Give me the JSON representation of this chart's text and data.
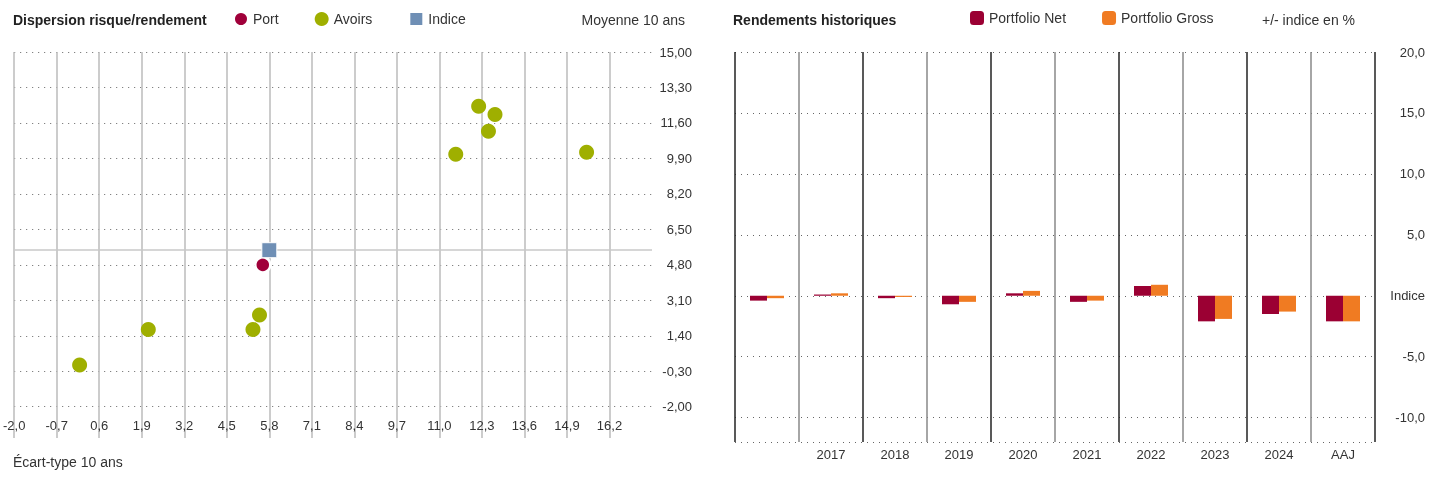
{
  "chart_data": [
    {
      "type": "scatter",
      "title": "Dispersion risque/rendement",
      "xlabel": "Écart-type 10 ans",
      "ylabel": "Moyenne 10 ans",
      "legend": "top",
      "grid": true,
      "xlim": [
        -2,
        17.5
      ],
      "xticks": [
        {
          "value": -2,
          "label": "-2,0"
        },
        {
          "value": -0.7,
          "label": "-0,7"
        },
        {
          "value": 0.6,
          "label": "0,6"
        },
        {
          "value": 1.9,
          "label": "1,9"
        },
        {
          "value": 3.2,
          "label": "3,2"
        },
        {
          "value": 4.5,
          "label": "4,5"
        },
        {
          "value": 5.8,
          "label": "5,8"
        },
        {
          "value": 7.1,
          "label": "7,1"
        },
        {
          "value": 8.4,
          "label": "8,4"
        },
        {
          "value": 9.7,
          "label": "9,7"
        },
        {
          "value": 11,
          "label": "11,0"
        },
        {
          "value": 12.3,
          "label": "12,3"
        },
        {
          "value": 13.6,
          "label": "13,6"
        },
        {
          "value": 14.9,
          "label": "14,9"
        },
        {
          "value": 16.2,
          "label": "16,2"
        }
      ],
      "ylim": [
        -3.5,
        15
      ],
      "yticks": [
        {
          "value": 15,
          "label": "15,00"
        },
        {
          "value": 13.3,
          "label": "13,30"
        },
        {
          "value": 11.6,
          "label": "11,60"
        },
        {
          "value": 9.9,
          "label": "9,90"
        },
        {
          "value": 8.2,
          "label": "8,20"
        },
        {
          "value": 6.5,
          "label": "6,50"
        },
        {
          "value": 4.8,
          "label": "4,80"
        },
        {
          "value": 3.1,
          "label": "3,10"
        },
        {
          "value": 1.4,
          "label": "1,40"
        },
        {
          "value": -0.3,
          "label": "-0,30"
        },
        {
          "value": -2,
          "label": "-2,00"
        }
      ],
      "ref_lines": [
        {
          "axis": "y",
          "value": 5.5,
          "color": "#c8c8c8"
        }
      ],
      "series": [
        {
          "name": "Port",
          "color": "#a0003a",
          "marker": "circle",
          "x": [
            5.6
          ],
          "values": [
            4.8
          ]
        },
        {
          "name": "Avoirs",
          "color": "#9faf00",
          "marker": "circle",
          "x": [
            0.0,
            2.1,
            5.3,
            5.5,
            11.5,
            12.2,
            12.5,
            12.7,
            15.5
          ],
          "values": [
            0.0,
            1.7,
            1.7,
            2.4,
            10.1,
            12.4,
            11.2,
            12.0,
            10.2
          ]
        },
        {
          "name": "Indice",
          "color": "#6f8fb5",
          "marker": "square",
          "x": [
            5.8
          ],
          "values": [
            5.5
          ]
        }
      ]
    },
    {
      "type": "bar",
      "title": "Rendements historiques",
      "ylabel": "+/- indice en %",
      "legend": "top",
      "grid": true,
      "categories": [
        null,
        "2017",
        "2018",
        "2019",
        "2020",
        "2021",
        "2022",
        "2023",
        "2024",
        "AAJ"
      ],
      "ylim": [
        -12,
        20
      ],
      "yticks": [
        {
          "value": 20,
          "label": "20,0"
        },
        {
          "value": 15,
          "label": "15,0"
        },
        {
          "value": 10,
          "label": "10,0"
        },
        {
          "value": 5,
          "label": "5,0"
        },
        {
          "value": 0,
          "label": "Indice"
        },
        {
          "value": -5,
          "label": "-5,0"
        },
        {
          "value": -10,
          "label": "-10,0"
        }
      ],
      "series": [
        {
          "name": "Portfolio Net",
          "color": "#9b0033",
          "values": [
            -0.4,
            0.1,
            -0.2,
            -0.7,
            0.2,
            -0.5,
            0.8,
            -2.1,
            -1.5,
            -2.1
          ]
        },
        {
          "name": "Portfolio Gross",
          "color": "#f07b22",
          "values": [
            -0.2,
            0.2,
            -0.1,
            -0.5,
            0.4,
            -0.4,
            0.9,
            -1.9,
            -1.3,
            -2.1
          ]
        }
      ]
    }
  ]
}
